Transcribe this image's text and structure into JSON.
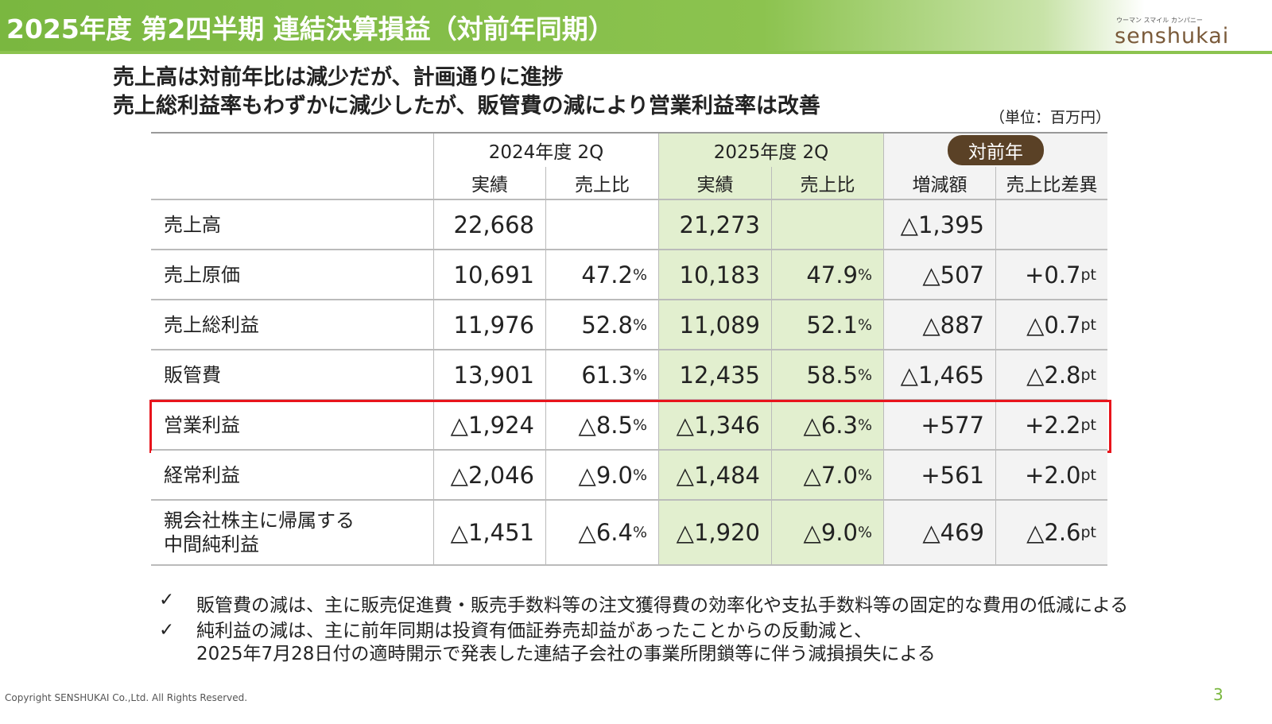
{
  "header": {
    "title": "2025年度 第2四半期 連結決算損益（対前年同期）",
    "logo_tagline": "ウーマン スマイル カンパニー",
    "logo": "senshukai"
  },
  "headline": [
    "売上高は対前年比は減少だが、計画通りに進捗",
    "売上総利益率もわずかに減少したが、販管費の減により営業利益率は改善"
  ],
  "unit": "（単位：百万円）",
  "table": {
    "groups": [
      "2024年度 2Q",
      "2025年度 2Q",
      "対前年"
    ],
    "columns": [
      "実績",
      "売上比",
      "実績",
      "売上比",
      "増減額",
      "売上比差異"
    ],
    "rows": [
      [
        "売上高",
        "22,668",
        "",
        "21,273",
        "",
        "△1,395",
        ""
      ],
      [
        "売上原価",
        "10,691",
        "47.2%",
        "10,183",
        "47.9%",
        "△507",
        "+0.7pt"
      ],
      [
        "売上総利益",
        "11,976",
        "52.8%",
        "11,089",
        "52.1%",
        "△887",
        "△0.7pt"
      ],
      [
        "販管費",
        "13,901",
        "61.3%",
        "12,435",
        "58.5%",
        "△1,465",
        "△2.8pt"
      ],
      [
        "営業利益",
        "△1,924",
        "△8.5%",
        "△1,346",
        "△6.3%",
        "+577",
        "+2.2pt"
      ],
      [
        "経常利益",
        "△2,046",
        "△9.0%",
        "△1,484",
        "△7.0%",
        "+561",
        "+2.0pt"
      ],
      [
        "親会社株主に帰属する\n中間純利益",
        "△1,451",
        "△6.4%",
        "△1,920",
        "△9.0%",
        "△469",
        "△2.6pt"
      ]
    ],
    "highlight_row": 4
  },
  "notes": [
    "販管費の減は、主に販売促進費・販売手数料等の注文獲得費の効率化や支払手数料等の固定的な費用の低減による",
    "純利益の減は、主に前年同期は投資有価証券売却益があったことからの反動減と、\n2025年7月28日付の適時開示で発表した連結子会社の事業所閉鎖等に伴う減損損失による"
  ],
  "footer": {
    "copyright": "Copyright SENSHUKAI Co.,Ltd. All Rights Reserved.",
    "page": "3"
  }
}
